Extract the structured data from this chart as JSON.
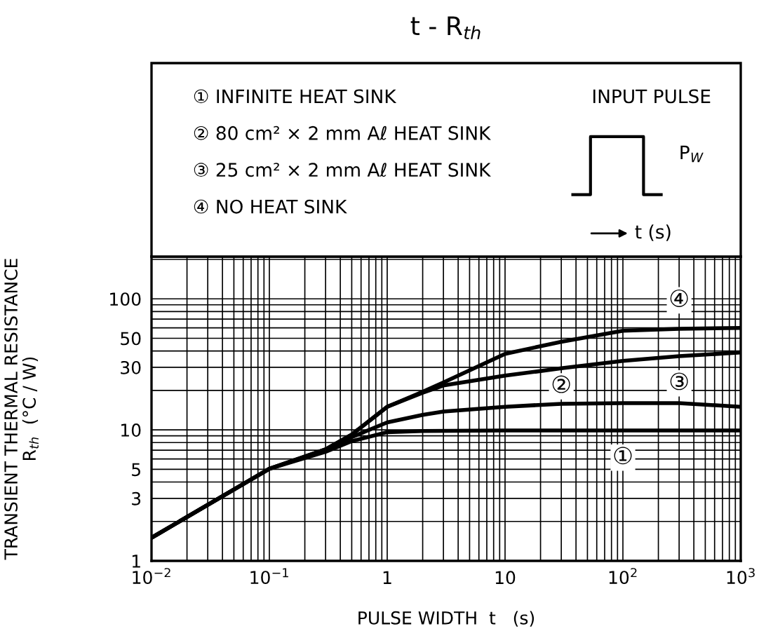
{
  "chart_data": {
    "type": "line",
    "title": "t - R$_{th}$",
    "xlabel": "PULSE WIDTH  t   (s)",
    "ylabel": "TRANSIENT THERMAL RESISTANCE\nR$_{th}$  (°C / W)",
    "series": [
      {
        "name": "①",
        "color": "#000000",
        "x": [
          0.01,
          0.1,
          0.3,
          0.5,
          1,
          2,
          10,
          100,
          1000
        ],
        "values": [
          1.5,
          5.05,
          6.8,
          8.2,
          9.6,
          9.8,
          9.9,
          9.9,
          9.9
        ]
      },
      {
        "name": "②",
        "color": "#000000",
        "x": [
          0.01,
          0.1,
          0.3,
          0.5,
          1,
          2,
          3,
          10,
          30,
          100,
          300,
          1000
        ],
        "values": [
          1.5,
          5.05,
          7.0,
          8.8,
          11.4,
          13,
          13.8,
          15,
          15.8,
          16,
          16,
          15
        ]
      },
      {
        "name": "③",
        "color": "#000000",
        "x": [
          0.01,
          0.1,
          0.3,
          0.5,
          1,
          2,
          3,
          10,
          30,
          100,
          300,
          1000
        ],
        "values": [
          1.5,
          5.05,
          7.1,
          9.2,
          15,
          19.2,
          21.8,
          25.9,
          29.5,
          33.6,
          36.5,
          39
        ]
      },
      {
        "name": "④",
        "color": "#000000",
        "x": [
          0.01,
          0.1,
          0.3,
          0.5,
          1,
          2,
          3,
          10,
          30,
          100,
          300,
          1000
        ],
        "values": [
          1.5,
          5.05,
          7.1,
          9.2,
          15,
          19.5,
          23,
          38,
          47,
          57,
          59,
          60
        ]
      }
    ],
    "annotations": [
      "① INFINITE HEAT SINK",
      "② 80 cm² × 2 mm Aℓ HEAT SINK",
      "③ 25 cm² × 2 mm Aℓ HEAT SINK",
      "④ NO HEAT SINK",
      "INPUT PULSE",
      "P$_{W}$",
      "t (s)"
    ],
    "log": "xy",
    "xlim": [
      0.01,
      1000
    ],
    "ylim": [
      1,
      210
    ],
    "xticks": [
      {
        "value": 0.01,
        "label": "10$^{−2}$"
      },
      {
        "value": 0.02,
        "label": null
      },
      {
        "value": 0.03,
        "label": null
      },
      {
        "value": 0.04,
        "label": null
      },
      {
        "value": 0.05,
        "label": null
      },
      {
        "value": 0.06,
        "label": null
      },
      {
        "value": 0.07,
        "label": null
      },
      {
        "value": 0.08,
        "label": null
      },
      {
        "value": 0.09,
        "label": null
      },
      {
        "value": 0.1,
        "label": "10$^{−1}$"
      },
      {
        "value": 0.2,
        "label": null
      },
      {
        "value": 0.3,
        "label": null
      },
      {
        "value": 0.4,
        "label": null
      },
      {
        "value": 0.5,
        "label": null
      },
      {
        "value": 0.6,
        "label": null
      },
      {
        "value": 0.7,
        "label": null
      },
      {
        "value": 0.8,
        "label": null
      },
      {
        "value": 0.9,
        "label": null
      },
      1,
      {
        "value": 2,
        "label": null
      },
      {
        "value": 3,
        "label": null
      },
      {
        "value": 4,
        "label": null
      },
      {
        "value": 5,
        "label": null
      },
      {
        "value": 6,
        "label": null
      },
      {
        "value": 7,
        "label": null
      },
      {
        "value": 8,
        "label": null
      },
      {
        "value": 9,
        "label": null
      },
      10,
      {
        "value": 20,
        "label": null
      },
      {
        "value": 30,
        "label": null
      },
      {
        "value": 40,
        "label": null
      },
      {
        "value": 50,
        "label": null
      },
      {
        "value": 60,
        "label": null
      },
      {
        "value": 70,
        "label": null
      },
      {
        "value": 80,
        "label": null
      },
      {
        "value": 90,
        "label": null
      },
      {
        "value": 100,
        "label": "10$^{2}$"
      },
      {
        "value": 200,
        "label": null
      },
      {
        "value": 300,
        "label": null
      },
      {
        "value": 400,
        "label": null
      },
      {
        "value": 500,
        "label": null
      },
      {
        "value": 600,
        "label": null
      },
      {
        "value": 700,
        "label": null
      },
      {
        "value": 800,
        "label": null
      },
      {
        "value": 900,
        "label": null
      },
      {
        "value": 1000,
        "label": "10$^{3}$"
      }
    ],
    "yticks": [
      1,
      {
        "value": 2,
        "label": null
      },
      3,
      {
        "value": 4,
        "label": null
      },
      5,
      {
        "value": 6,
        "label": null
      },
      {
        "value": 7,
        "label": null
      },
      {
        "value": 8,
        "label": null
      },
      {
        "value": 9,
        "label": null
      },
      10,
      {
        "value": 20,
        "label": null
      },
      30,
      {
        "value": 40,
        "label": null
      },
      50,
      {
        "value": 60,
        "label": null
      },
      {
        "value": 70,
        "label": null
      },
      {
        "value": 80,
        "label": null
      },
      {
        "value": 90,
        "label": null
      },
      100,
      {
        "value": 200,
        "label": null
      }
    ],
    "grid": true,
    "legend": false
  }
}
